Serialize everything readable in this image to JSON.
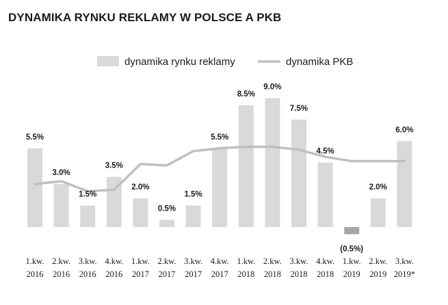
{
  "chart_data": {
    "type": "bar",
    "title": "DYNAMIKA RYNKU REKLAMY W POLSCE A PKB",
    "legend_position": "top-center",
    "categories": [
      [
        "1.kw.",
        "2016"
      ],
      [
        "2.kw.",
        "2016"
      ],
      [
        "3.kw.",
        "2016"
      ],
      [
        "4.kw.",
        "2016"
      ],
      [
        "1.kw.",
        "2017"
      ],
      [
        "2.kw.",
        "2017"
      ],
      [
        "3.kw.",
        "2017"
      ],
      [
        "4.kw.",
        "2017"
      ],
      [
        "1.kw.",
        "2018"
      ],
      [
        "2.kw.",
        "2018"
      ],
      [
        "3.kw.",
        "2018"
      ],
      [
        "4.kw.",
        "2018"
      ],
      [
        "1.kw.",
        "2019"
      ],
      [
        "2.kw.",
        "2019"
      ],
      [
        "3.kw.",
        "2019*"
      ]
    ],
    "series": [
      {
        "name": "dynamika rynku reklamy",
        "type": "bar",
        "color": "#d9d9d9",
        "negative_color": "#a6a6a6",
        "values": [
          5.5,
          3.0,
          1.5,
          3.5,
          2.0,
          0.5,
          1.5,
          5.5,
          8.5,
          9.0,
          7.5,
          4.5,
          -0.5,
          2.0,
          6.0
        ],
        "labels": [
          "5.5%",
          "3.0%",
          "1.5%",
          "3.5%",
          "2.0%",
          "0.5%",
          "1.5%",
          "5.5%",
          "8.5%",
          "9.0%",
          "7.5%",
          "4.5%",
          "(0.5%)",
          "2.0%",
          "6.0%"
        ]
      },
      {
        "name": "dynamika PKB",
        "type": "line",
        "color": "#bfbfbf",
        "values": [
          3.0,
          3.2,
          2.5,
          2.6,
          4.4,
          4.3,
          5.3,
          5.5,
          5.6,
          5.6,
          5.4,
          4.9,
          4.6,
          4.6,
          4.6
        ]
      }
    ],
    "ylim": [
      -1,
      9.5
    ],
    "grid": false
  }
}
